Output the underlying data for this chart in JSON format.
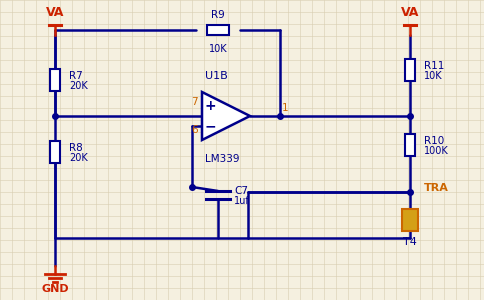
{
  "bg_color": "#f5f0e0",
  "grid_color": "#d8cdb0",
  "wire_color": "#00008b",
  "label_color": "#00008b",
  "power_color": "#cc2200",
  "comp_color": "#cc6600",
  "transistor_color": "#cc6600",
  "title": "",
  "components": {
    "R7": {
      "label": "R7",
      "value": "20K"
    },
    "R8": {
      "label": "R8",
      "value": "20K"
    },
    "R9": {
      "label": "R9",
      "value": "10K"
    },
    "R10": {
      "label": "R10",
      "value": "100K"
    },
    "R11": {
      "label": "R11",
      "value": "10K"
    },
    "C7": {
      "label": "C7",
      "value": "1uf"
    },
    "U1B": {
      "label": "U1B",
      "ic": "LM339"
    },
    "T4": {
      "label": "T4"
    }
  }
}
